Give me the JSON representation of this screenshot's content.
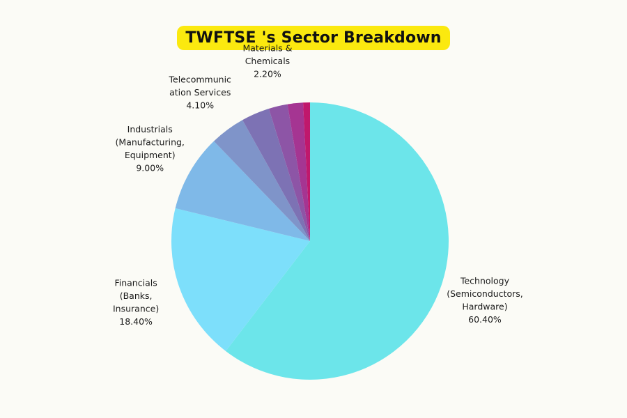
{
  "chart_data": {
    "type": "pie",
    "title": "TWFTSE 's Sector Breakdown",
    "slices": [
      {
        "label": [
          "Technology",
          "(Semiconductors,",
          "Hardware)"
        ],
        "value": 60.4,
        "value_label": "60.40%",
        "color": "#6ce5ea",
        "show_label": true
      },
      {
        "label": [
          "Financials",
          "(Banks,",
          "Insurance)"
        ],
        "value": 18.4,
        "value_label": "18.40%",
        "color": "#7ddffb",
        "show_label": true
      },
      {
        "label": [
          "Industrials",
          "(Manufacturing,",
          "Equipment)"
        ],
        "value": 9.0,
        "value_label": "9.00%",
        "color": "#7fb9e8",
        "show_label": true
      },
      {
        "label": [
          "Telecommunic",
          "ation Services"
        ],
        "value": 4.1,
        "value_label": "4.10%",
        "color": "#7f94c9",
        "show_label": true
      },
      {
        "label": [],
        "value": 3.3,
        "value_label": "",
        "color": "#7d72b4",
        "show_label": false
      },
      {
        "label": [
          "Materials &",
          "Chemicals"
        ],
        "value": 2.2,
        "value_label": "2.20%",
        "color": "#8d55a6",
        "show_label": true
      },
      {
        "label": [],
        "value": 1.8,
        "value_label": "",
        "color": "#a53592",
        "show_label": false
      },
      {
        "label": [],
        "value": 0.8,
        "value_label": "",
        "color": "#c0186c",
        "show_label": false
      }
    ]
  }
}
